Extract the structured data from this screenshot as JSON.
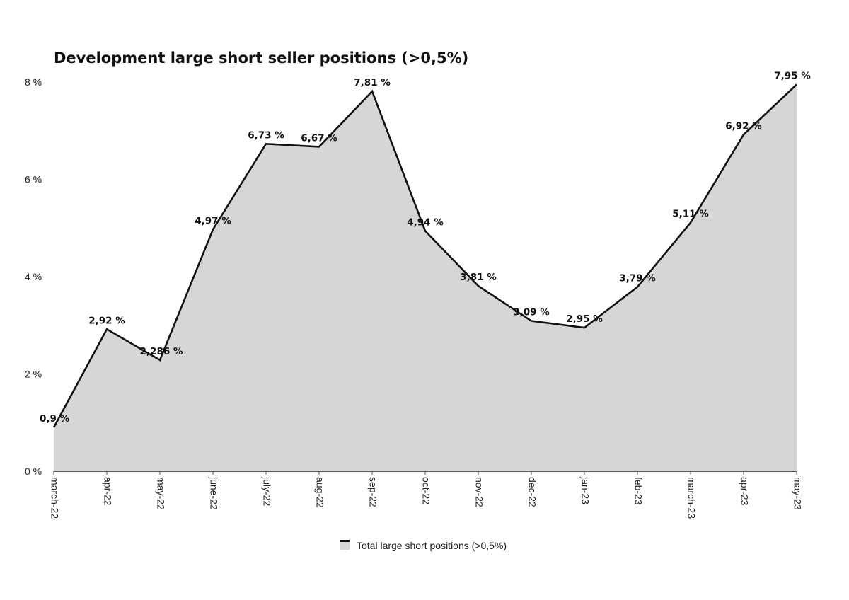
{
  "chart_data": {
    "type": "area",
    "title": "Development large short seller positions (>0,5%)",
    "xlabel": "",
    "ylabel": "",
    "categories": [
      "march-22",
      "apr-22",
      "may-22",
      "june-22",
      "july-22",
      "aug-22",
      "sep-22",
      "oct-22",
      "nov-22",
      "dec-22",
      "jan-23",
      "feb-23",
      "march-23",
      "apr-23",
      "may-23"
    ],
    "series": [
      {
        "name": "Total large short positions (>0,5%)",
        "values": [
          0.9,
          2.92,
          2.286,
          4.97,
          6.73,
          6.67,
          7.81,
          4.94,
          3.81,
          3.09,
          2.95,
          3.79,
          5.11,
          6.92,
          7.95
        ],
        "labels": [
          "0,9 %",
          "2,92 %",
          "2,286 %",
          "4,97 %",
          "6,73 %",
          "6,67 %",
          "7,81 %",
          "4,94 %",
          "3,81 %",
          "3,09 %",
          "2,95 %",
          "3,79 %",
          "5,11 %",
          "6,92 %",
          "7,95 %"
        ]
      }
    ],
    "ylim": [
      0,
      8
    ],
    "yticks": [
      0,
      2,
      4,
      6,
      8
    ],
    "ytick_labels": [
      "0 %",
      "2 %",
      "4 %",
      "6 %",
      "8 %"
    ],
    "grid": false,
    "legend_position": "bottom-center",
    "colors": {
      "fill": "#d6d7d5",
      "line": "#111111",
      "axis": "#555555"
    }
  }
}
